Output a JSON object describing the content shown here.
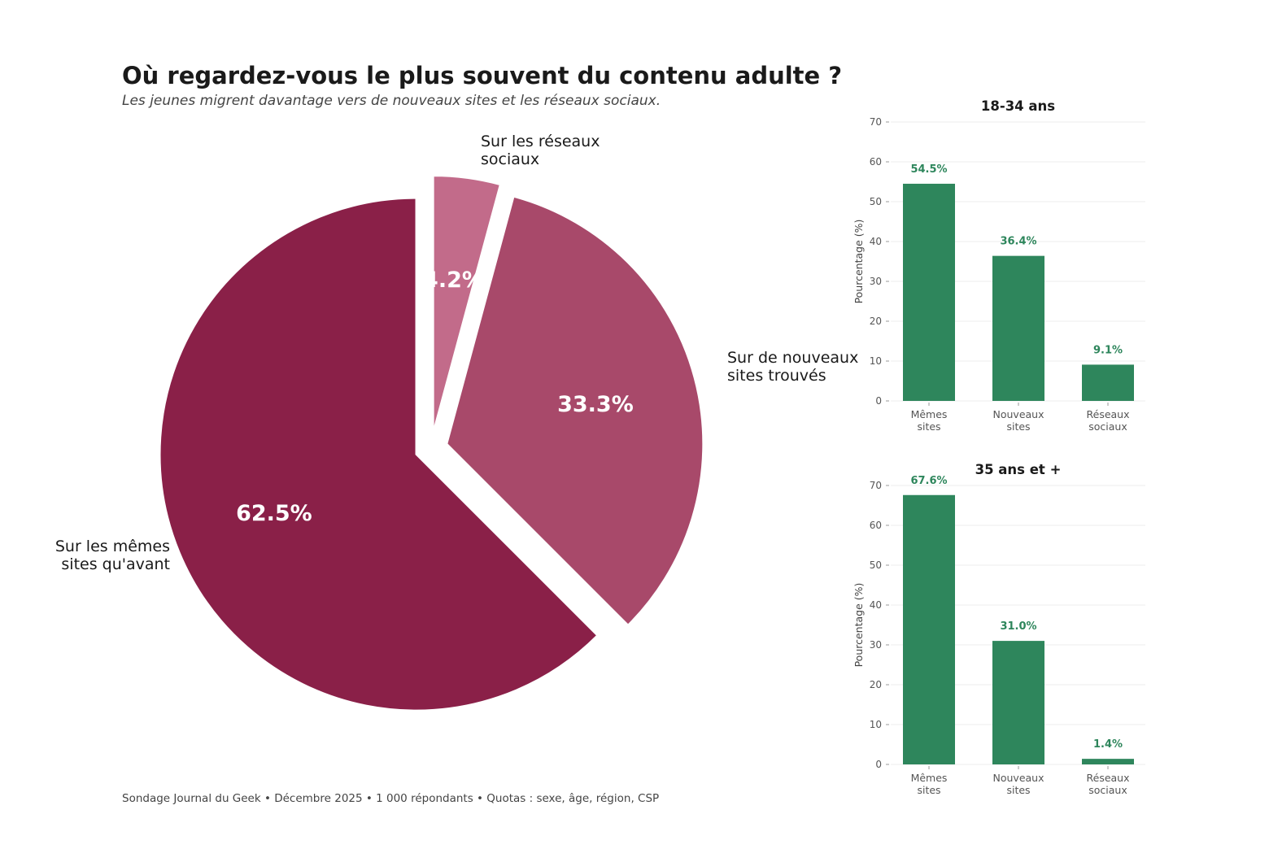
{
  "header": {
    "title": "Où regardez-vous le plus souvent du contenu adulte ?",
    "subtitle": "Les jeunes migrent davantage vers de nouveaux sites et les réseaux sociaux."
  },
  "footer": {
    "source": "Sondage Journal du Geek • Décembre 2025 • 1 000 répondants • Quotas : sexe, âge, région, CSP"
  },
  "chart_data": [
    {
      "type": "pie",
      "categories": [
        "Sur les réseaux\nsociaux",
        "Sur de nouveaux\nsites trouvés",
        "Sur les mêmes\nsites qu'avant"
      ],
      "values": [
        4.2,
        33.3,
        62.5
      ],
      "value_labels": [
        "4.2%",
        "33.3%",
        "62.5%"
      ],
      "colors": [
        "#c26b8a",
        "#a8496a",
        "#8a2048"
      ],
      "start_angle_deg": 90,
      "direction": "clockwise",
      "exploded": true
    },
    {
      "type": "bar",
      "title": "18-34 ans",
      "categories": [
        "Mêmes\nsites",
        "Nouveaux\nsites",
        "Réseaux\nsociaux"
      ],
      "values": [
        54.5,
        36.4,
        9.1
      ],
      "value_labels": [
        "54.5%",
        "36.4%",
        "9.1%"
      ],
      "ylabel": "Pourcentage (%)",
      "ylim": [
        0,
        70
      ],
      "yticks": [
        0,
        10,
        20,
        30,
        40,
        50,
        60,
        70
      ],
      "color": "#2e865c",
      "grid": true
    },
    {
      "type": "bar",
      "title": "35 ans et +",
      "categories": [
        "Mêmes\nsites",
        "Nouveaux\nsites",
        "Réseaux\nsociaux"
      ],
      "values": [
        67.6,
        31.0,
        1.4
      ],
      "value_labels": [
        "67.6%",
        "31.0%",
        "1.4%"
      ],
      "ylabel": "Pourcentage (%)",
      "ylim": [
        0,
        70
      ],
      "yticks": [
        0,
        10,
        20,
        30,
        40,
        50,
        60,
        70
      ],
      "color": "#2e865c",
      "grid": true
    }
  ]
}
